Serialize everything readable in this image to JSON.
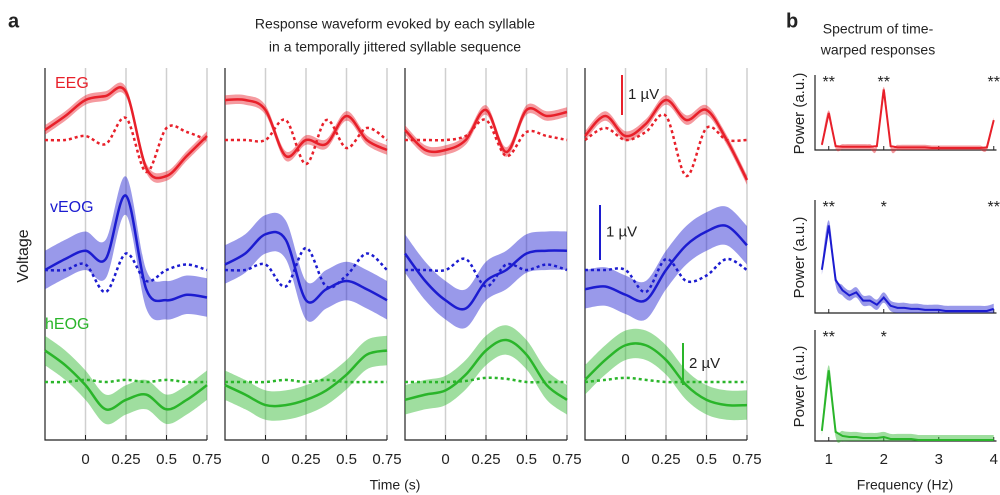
{
  "chart_data": [
    {
      "type": "line",
      "panel_label": "a",
      "title": [
        "Response waveform evoked by each syllable",
        "in a temporally jittered syllable sequence"
      ],
      "xlabel": "Time (s)",
      "ylabel": "Voltage",
      "x": [
        -0.25,
        -0.125,
        0,
        0.125,
        0.25,
        0.375,
        0.5,
        0.625,
        0.75
      ],
      "xlim": [
        -0.25,
        0.75
      ],
      "xticks": [
        0,
        0.25,
        0.5,
        0.75
      ],
      "grid": true,
      "rows": [
        {
          "name": "EEG",
          "color": "#e8202a",
          "error": 0.12,
          "scale_bar": {
            "value": 1,
            "label": "1 µV"
          },
          "solid": [
            [
              0.25,
              0.6,
              1.0,
              1.1,
              1.2,
              -0.7,
              -0.9,
              -0.4,
              0.1
            ],
            [
              1.0,
              1.0,
              0.75,
              -0.4,
              0,
              -0.1,
              0.6,
              0,
              -0.25
            ],
            [
              0.25,
              -0.25,
              -0.25,
              0,
              0.75,
              -0.3,
              0.75,
              0.6,
              0.7
            ],
            [
              0.1,
              0.6,
              0.1,
              0.4,
              1.0,
              0.5,
              0.75,
              0,
              -1.0
            ]
          ],
          "dotted": [
            [
              0,
              0,
              0.1,
              -0.1,
              0.55,
              -0.8,
              0.3,
              0.2,
              0
            ],
            [
              0,
              0,
              0,
              0.5,
              -0.6,
              0.5,
              -0.2,
              0.3,
              0
            ],
            [
              0,
              0,
              0,
              0.1,
              0.5,
              -0.4,
              0.2,
              0.1,
              0
            ],
            [
              0,
              0.3,
              0,
              0.2,
              0.6,
              -0.9,
              0.3,
              0,
              0
            ]
          ]
        },
        {
          "name": "vEOG",
          "color": "#1c1cd0",
          "error": 0.35,
          "scale_bar": {
            "value": 1,
            "label": "1 µV"
          },
          "solid": [
            [
              0,
              0.2,
              0.35,
              0.2,
              1.35,
              -0.35,
              -0.55,
              -0.45,
              -0.5
            ],
            [
              0.1,
              0.3,
              0.65,
              0.55,
              -0.55,
              -0.35,
              -0.2,
              -0.35,
              -0.55
            ],
            [
              0.3,
              -0.2,
              -0.55,
              -0.7,
              -0.2,
              0,
              0.3,
              0.35,
              0.35
            ],
            [
              -0.35,
              -0.3,
              -0.45,
              -0.55,
              0,
              0.45,
              0.7,
              0.8,
              0.45
            ]
          ],
          "dotted": [
            [
              0,
              0,
              0.1,
              -0.4,
              0.3,
              -0.2,
              0,
              0.1,
              0
            ],
            [
              0,
              0,
              0.1,
              -0.3,
              0.4,
              -0.3,
              -0.1,
              0.3,
              0
            ],
            [
              0,
              0,
              0,
              0.2,
              -0.3,
              0.1,
              0,
              0.1,
              0
            ],
            [
              0,
              0,
              0,
              -0.4,
              0.2,
              -0.2,
              -0.1,
              0.2,
              0
            ]
          ]
        },
        {
          "name": "hEOG",
          "color": "#2ab52a",
          "error": 0.7,
          "scale_bar": {
            "value": 2,
            "label": "2 µV"
          },
          "solid": [
            [
              1.5,
              0.8,
              -0.15,
              -1.3,
              -0.85,
              -0.6,
              -1.3,
              -0.85,
              -0.15
            ],
            [
              -0.15,
              -0.6,
              -1.1,
              -1.1,
              -0.85,
              -0.4,
              0.35,
              1.3,
              1.5
            ],
            [
              -0.85,
              -0.6,
              -0.4,
              0.35,
              1.5,
              2.0,
              1.3,
              -0.15,
              -0.85
            ],
            [
              0.1,
              1.05,
              1.75,
              1.75,
              1.05,
              -0.15,
              -0.85,
              -1.1,
              -1.1
            ]
          ],
          "dotted": [
            [
              0,
              0,
              0.1,
              0,
              0.1,
              0,
              0.1,
              0,
              0
            ],
            [
              0,
              0,
              0,
              0.1,
              0,
              0.1,
              0,
              0,
              0
            ],
            [
              0,
              0,
              0,
              0.05,
              0.2,
              0.15,
              0,
              0,
              0
            ],
            [
              0,
              0.1,
              0.2,
              0.1,
              0,
              0,
              0,
              0,
              0
            ]
          ]
        }
      ]
    },
    {
      "type": "line",
      "panel_label": "b",
      "title": [
        "Spectrum of time-",
        "warped responses"
      ],
      "xlabel": "Frequency (Hz)",
      "ylabel": "Power (a.u.)",
      "x": [
        0.875,
        1,
        1.125,
        1.25,
        1.375,
        1.5,
        1.625,
        1.75,
        1.875,
        2,
        2.125,
        2.25,
        2.375,
        2.5,
        2.625,
        2.75,
        2.875,
        3,
        3.125,
        3.25,
        3.375,
        3.5,
        3.625,
        3.75,
        3.875,
        4
      ],
      "xlim": [
        0.75,
        4.05
      ],
      "xticks": [
        1,
        2,
        3,
        4
      ],
      "ylim": [
        0,
        1
      ],
      "rows": [
        {
          "color": "#e8202a",
          "error": 0.04,
          "values": [
            0.08,
            0.57,
            0.06,
            0.05,
            0.05,
            0.05,
            0.05,
            0.05,
            0.06,
            0.93,
            0.06,
            0.04,
            0.04,
            0.04,
            0.04,
            0.04,
            0.03,
            0.03,
            0.03,
            0.03,
            0.03,
            0.03,
            0.03,
            0.03,
            0.04,
            0.46
          ],
          "markers": [
            {
              "x": 1,
              "label": "**"
            },
            {
              "x": 2,
              "label": "**"
            },
            {
              "x": 4,
              "label": "**"
            }
          ]
        },
        {
          "color": "#1c1cd0",
          "error": 0.05,
          "values": [
            0.42,
            0.85,
            0.32,
            0.22,
            0.17,
            0.2,
            0.12,
            0.12,
            0.08,
            0.15,
            0.07,
            0.05,
            0.05,
            0.04,
            0.04,
            0.03,
            0.03,
            0.03,
            0.02,
            0.02,
            0.02,
            0.02,
            0.02,
            0.02,
            0.02,
            0.04
          ],
          "markers": [
            {
              "x": 1,
              "label": "**"
            },
            {
              "x": 2,
              "label": "*"
            },
            {
              "x": 4,
              "label": "**"
            }
          ]
        },
        {
          "color": "#2ab52a",
          "error": 0.05,
          "values": [
            0.1,
            0.7,
            0.09,
            0.05,
            0.04,
            0.04,
            0.03,
            0.03,
            0.03,
            0.04,
            0.02,
            0.02,
            0.02,
            0.02,
            0.01,
            0.01,
            0.01,
            0.01,
            0.01,
            0.01,
            0.01,
            0.01,
            0.01,
            0.01,
            0.01,
            0.01
          ],
          "markers": [
            {
              "x": 1,
              "label": "**"
            },
            {
              "x": 2,
              "label": "*"
            }
          ]
        }
      ]
    }
  ]
}
